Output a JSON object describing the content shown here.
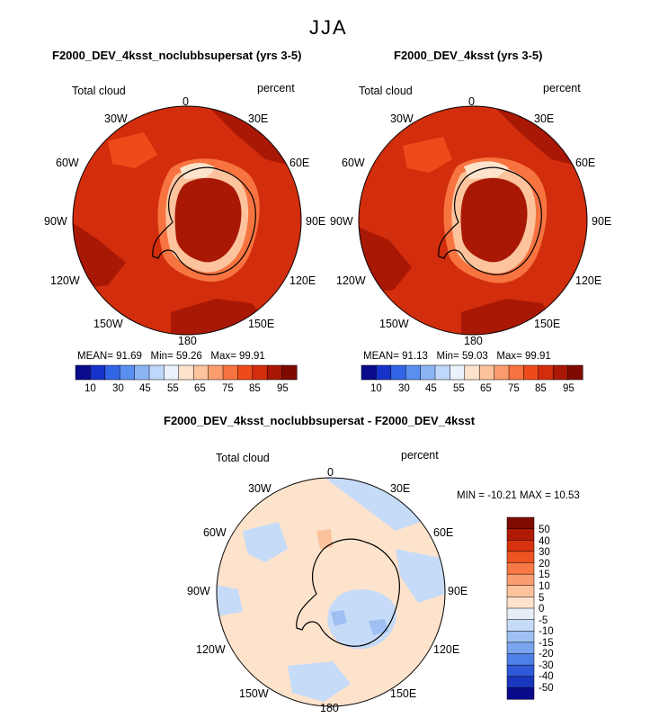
{
  "figure": {
    "season": "JJA",
    "bottom_title": "F2000_DEV_4ksst_noclubbsupersat - F2000_DEV_4ksst"
  },
  "panels": [
    {
      "title": "F2000_DEV_4ksst_noclubbsupersat (yrs 3-5)",
      "variable": "Total cloud",
      "units": "percent",
      "stats": {
        "mean_label": "MEAN=",
        "mean": "91.69",
        "min_label": "Min=",
        "min": "59.26",
        "max_label": "Max=",
        "max": "99.91"
      }
    },
    {
      "title": "F2000_DEV_4ksst (yrs 3-5)",
      "variable": "Total cloud",
      "units": "percent",
      "stats": {
        "mean_label": "MEAN=",
        "mean": "91.13",
        "min_label": "Min=",
        "min": "59.03",
        "max_label": "Max=",
        "max": "99.91"
      }
    },
    {
      "title": "",
      "variable": "Total cloud",
      "units": "percent",
      "stats_text": "MIN = -10.21  MAX =   10.53"
    }
  ],
  "longitude_labels": [
    "0",
    "30E",
    "60E",
    "90E",
    "120E",
    "150E",
    "180",
    "150W",
    "120W",
    "90W",
    "60W",
    "30W"
  ],
  "colorbar_abs": {
    "colors": [
      "#0a0a8c",
      "#1632c8",
      "#3264e6",
      "#5a8ff0",
      "#8cb4f5",
      "#bed7fa",
      "#eaf2fc",
      "#fde2cc",
      "#fcc39c",
      "#fa9c6e",
      "#f7733f",
      "#ef4a1a",
      "#d22d0c",
      "#a81805",
      "#7e0a02"
    ],
    "tick_labels": [
      "10",
      "30",
      "45",
      "55",
      "65",
      "75",
      "85",
      "95"
    ]
  },
  "colorbar_diff": {
    "colors": [
      "#7e0a02",
      "#b01a05",
      "#d7320e",
      "#ef5322",
      "#f77a46",
      "#fa9d70",
      "#fcc29c",
      "#fde3cc",
      "#e6eef7",
      "#c6dbf7",
      "#9fc0f3",
      "#7aa4ee",
      "#4f80e8",
      "#2e5ad8",
      "#1a36bc",
      "#0a0a8c"
    ],
    "tick_labels": [
      "50",
      "40",
      "30",
      "20",
      "15",
      "10",
      "5",
      "0",
      "-5",
      "-10",
      "-15",
      "-20",
      "-30",
      "-40",
      "-50"
    ]
  },
  "chart_data": [
    {
      "type": "heatmap",
      "title": "F2000_DEV_4ksst_noclubbsupersat (yrs 3-5)",
      "projection": "south polar stereographic",
      "variable": "Total cloud",
      "units": "percent",
      "mean": 91.69,
      "min": 59.26,
      "max": 99.91,
      "levels": [
        10,
        30,
        45,
        55,
        65,
        75,
        85,
        95
      ]
    },
    {
      "type": "heatmap",
      "title": "F2000_DEV_4ksst (yrs 3-5)",
      "projection": "south polar stereographic",
      "variable": "Total cloud",
      "units": "percent",
      "mean": 91.13,
      "min": 59.03,
      "max": 99.91,
      "levels": [
        10,
        30,
        45,
        55,
        65,
        75,
        85,
        95
      ]
    },
    {
      "type": "heatmap",
      "title": "F2000_DEV_4ksst_noclubbsupersat - F2000_DEV_4ksst",
      "projection": "south polar stereographic",
      "variable": "Total cloud",
      "units": "percent",
      "min": -10.21,
      "max": 10.53,
      "levels": [
        -50,
        -40,
        -30,
        -20,
        -15,
        -10,
        -5,
        0,
        5,
        10,
        15,
        20,
        30,
        40,
        50
      ]
    }
  ]
}
